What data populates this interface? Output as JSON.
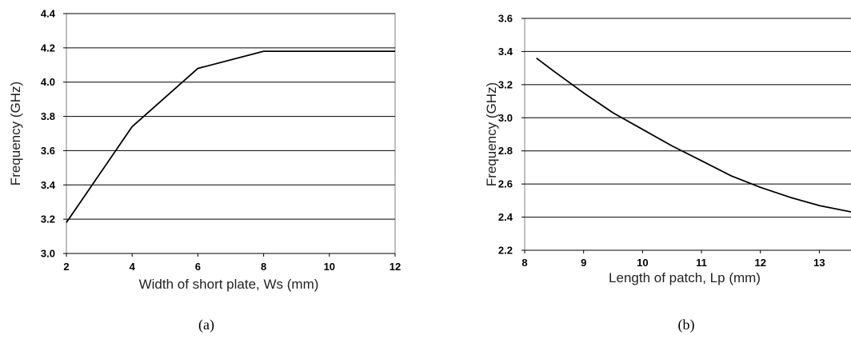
{
  "chart_data": [
    {
      "type": "line",
      "caption": "(a)",
      "title": "",
      "xlabel": "Width of short plate, Ws (mm)",
      "ylabel": "Frequency (GHz)",
      "xlim": [
        2,
        12
      ],
      "ylim": [
        3.0,
        4.4
      ],
      "xticks": [
        2,
        4,
        6,
        8,
        10,
        12
      ],
      "yticks": [
        "3.0",
        "3.2",
        "3.4",
        "3.6",
        "3.8",
        "4.0",
        "4.2",
        "4.4"
      ],
      "grid": "horizontal",
      "legend": "none",
      "series": [
        {
          "x": [
            2,
            4,
            6,
            8,
            10,
            12
          ],
          "y": [
            3.18,
            3.74,
            4.08,
            4.18,
            4.18,
            4.18
          ]
        }
      ]
    },
    {
      "type": "line",
      "caption": "(b)",
      "title": "",
      "xlabel": "Length of patch, Lp (mm)",
      "ylabel": "Frequency (GHz)",
      "xlim": [
        8,
        13.7
      ],
      "ylim": [
        2.2,
        3.6
      ],
      "xticks": [
        8,
        9,
        10,
        11,
        12,
        13
      ],
      "yticks": [
        "2.2",
        "2.4",
        "2.6",
        "2.8",
        "3.0",
        "3.2",
        "3.4",
        "3.6"
      ],
      "grid": "horizontal",
      "legend": "none",
      "series": [
        {
          "x": [
            8.2,
            8.5,
            9.0,
            9.5,
            10.0,
            10.5,
            11.0,
            11.5,
            12.0,
            12.5,
            13.0,
            13.7
          ],
          "y": [
            3.36,
            3.28,
            3.15,
            3.03,
            2.93,
            2.83,
            2.74,
            2.65,
            2.58,
            2.52,
            2.47,
            2.42
          ]
        }
      ]
    }
  ]
}
